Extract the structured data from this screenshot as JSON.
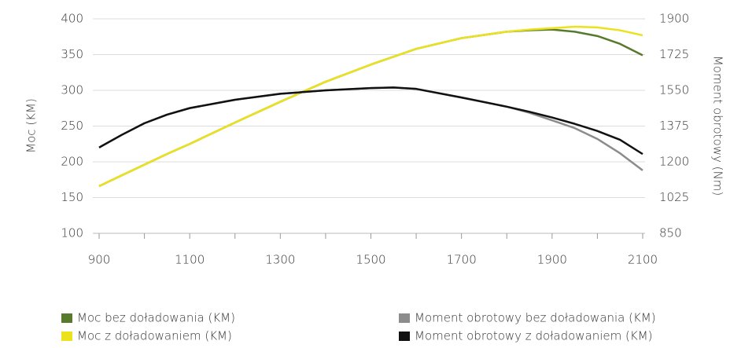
{
  "chart_data": {
    "type": "line",
    "ylabel": "Moc (KM)",
    "y2label": "Moment obrotowy (Nm)",
    "x": [
      900,
      950,
      1000,
      1050,
      1100,
      1200,
      1300,
      1400,
      1500,
      1550,
      1600,
      1700,
      1800,
      1850,
      1900,
      1950,
      2000,
      2050,
      2100
    ],
    "xlim": [
      900,
      2100
    ],
    "xticks": [
      900,
      1100,
      1300,
      1500,
      1700,
      1900,
      2100
    ],
    "xminorticks": [
      1000,
      1200,
      1400,
      1600,
      1800,
      2000
    ],
    "ylim": [
      100,
      400
    ],
    "yticks": [
      100,
      150,
      200,
      250,
      300,
      350,
      400
    ],
    "y2lim": [
      850,
      1900
    ],
    "y2ticks": [
      850,
      1025,
      1200,
      1375,
      1550,
      1725,
      1900
    ],
    "grid": true,
    "legend": "bottom",
    "series": [
      {
        "name": "Moc bez doładowania (KM)",
        "color": "#587a2c",
        "values": [
          166,
          181,
          196,
          211,
          225,
          255,
          284,
          312,
          336,
          347,
          358,
          373,
          382,
          384,
          385,
          382,
          376,
          365,
          349
        ]
      },
      {
        "name": "Moc z doładowaniem (KM)",
        "color": "#ece21c",
        "values": [
          166,
          181,
          196,
          211,
          225,
          255,
          284,
          312,
          336,
          347,
          358,
          373,
          382,
          385,
          387,
          389,
          388,
          384,
          377
        ]
      },
      {
        "name": "Moment obrotowy bez doładowania (KM)",
        "color": "#8c8c8c",
        "axis": "y2",
        "values": [
          1270,
          1332,
          1389,
          1431,
          1463,
          1504,
          1533,
          1550,
          1561,
          1564,
          1557,
          1515,
          1470,
          1440,
          1403,
          1365,
          1312,
          1242,
          1158
        ]
      },
      {
        "name": "Moment obrotowy z doładowaniem (KM)",
        "color": "#111111",
        "axis": "y2",
        "values": [
          1270,
          1332,
          1389,
          1431,
          1463,
          1504,
          1533,
          1550,
          1561,
          1564,
          1557,
          1515,
          1470,
          1445,
          1417,
          1386,
          1351,
          1308,
          1238
        ]
      }
    ]
  }
}
